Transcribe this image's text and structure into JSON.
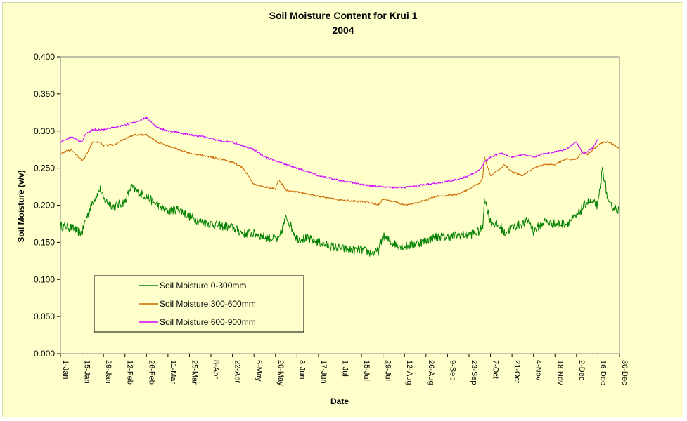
{
  "chart_data": {
    "type": "line",
    "title": "Soil Moisture Content for Krui 1",
    "subtitle": "2004",
    "xlabel": "Date",
    "ylabel": "Soil Moisture (v/v)",
    "ylim": [
      0,
      0.4
    ],
    "yticks": [
      "0.000",
      "0.050",
      "0.100",
      "0.150",
      "0.200",
      "0.250",
      "0.300",
      "0.350",
      "0.400"
    ],
    "xlim": [
      "1-Jan",
      "30-Dec"
    ],
    "xticks": [
      "1-Jan",
      "15-Jan",
      "29-Jan",
      "12-Feb",
      "26-Feb",
      "11-Mar",
      "25-Mar",
      "8-Apr",
      "22-Apr",
      "6-May",
      "20-May",
      "3-Jun",
      "17-Jun",
      "1-Jul",
      "15-Jul",
      "29-Jul",
      "12-Aug",
      "26-Aug",
      "9-Sep",
      "23-Sep",
      "7-Oct",
      "21-Oct",
      "4-Nov",
      "18-Nov",
      "2-Dec",
      "16-Dec",
      "30-Dec"
    ],
    "grid": false,
    "legend_position": "bottom-left",
    "series": [
      {
        "name": "Soil Moisture 0-300mm",
        "color": "#008000",
        "x": [
          "1-Jan",
          "8-Jan",
          "15-Jan",
          "17-Jan",
          "22-Jan",
          "27-Jan",
          "29-Jan",
          "5-Feb",
          "12-Feb",
          "16-Feb",
          "20-Feb",
          "26-Feb",
          "4-Mar",
          "11-Mar",
          "18-Mar",
          "25-Mar",
          "1-Apr",
          "8-Apr",
          "15-Apr",
          "22-Apr",
          "29-Apr",
          "6-May",
          "13-May",
          "20-May",
          "22-May",
          "27-May",
          "3-Jun",
          "10-Jun",
          "17-Jun",
          "24-Jun",
          "1-Jul",
          "8-Jul",
          "15-Jul",
          "22-Jul",
          "26-Jul",
          "29-Jul",
          "5-Aug",
          "12-Aug",
          "19-Aug",
          "26-Aug",
          "2-Sep",
          "9-Sep",
          "16-Sep",
          "23-Sep",
          "30-Sep",
          "2-Oct",
          "3-Oct",
          "7-Oct",
          "14-Oct",
          "16-Oct",
          "21-Oct",
          "28-Oct",
          "1-Nov",
          "4-Nov",
          "11-Nov",
          "18-Nov",
          "25-Nov",
          "2-Dec",
          "9-Dec",
          "16-Dec",
          "19-Dec",
          "23-Dec",
          "30-Dec"
        ],
        "y": [
          0.172,
          0.17,
          0.162,
          0.178,
          0.205,
          0.222,
          0.208,
          0.198,
          0.205,
          0.225,
          0.218,
          0.212,
          0.2,
          0.192,
          0.195,
          0.185,
          0.178,
          0.175,
          0.172,
          0.17,
          0.162,
          0.162,
          0.157,
          0.155,
          0.152,
          0.185,
          0.155,
          0.155,
          0.15,
          0.145,
          0.142,
          0.14,
          0.14,
          0.135,
          0.138,
          0.158,
          0.148,
          0.144,
          0.148,
          0.152,
          0.158,
          0.157,
          0.16,
          0.16,
          0.165,
          0.17,
          0.21,
          0.178,
          0.17,
          0.162,
          0.17,
          0.175,
          0.18,
          0.165,
          0.178,
          0.175,
          0.175,
          0.185,
          0.205,
          0.2,
          0.25,
          0.2,
          0.193
        ]
      },
      {
        "name": "Soil Moisture 300-600mm",
        "color": "#cc6600",
        "x": [
          "1-Jan",
          "8-Jan",
          "15-Jan",
          "17-Jan",
          "22-Jan",
          "27-Jan",
          "29-Jan",
          "5-Feb",
          "12-Feb",
          "19-Feb",
          "26-Feb",
          "4-Mar",
          "11-Mar",
          "18-Mar",
          "25-Mar",
          "1-Apr",
          "8-Apr",
          "15-Apr",
          "22-Apr",
          "29-Apr",
          "6-May",
          "13-May",
          "20-May",
          "22-May",
          "27-May",
          "3-Jun",
          "10-Jun",
          "17-Jun",
          "24-Jun",
          "1-Jul",
          "8-Jul",
          "15-Jul",
          "22-Jul",
          "26-Jul",
          "29-Jul",
          "5-Aug",
          "12-Aug",
          "19-Aug",
          "26-Aug",
          "2-Sep",
          "9-Sep",
          "16-Sep",
          "23-Sep",
          "30-Sep",
          "2-Oct",
          "3-Oct",
          "7-Oct",
          "14-Oct",
          "16-Oct",
          "21-Oct",
          "28-Oct",
          "4-Nov",
          "11-Nov",
          "18-Nov",
          "25-Nov",
          "2-Dec",
          "6-Dec",
          "9-Dec",
          "13-Dec",
          "19-Dec",
          "23-Dec",
          "30-Dec"
        ],
        "y": [
          0.27,
          0.275,
          0.26,
          0.265,
          0.285,
          0.285,
          0.28,
          0.282,
          0.29,
          0.295,
          0.295,
          0.285,
          0.28,
          0.275,
          0.27,
          0.268,
          0.265,
          0.262,
          0.258,
          0.25,
          0.228,
          0.225,
          0.222,
          0.235,
          0.22,
          0.218,
          0.215,
          0.212,
          0.21,
          0.207,
          0.206,
          0.205,
          0.203,
          0.2,
          0.208,
          0.205,
          0.2,
          0.203,
          0.207,
          0.212,
          0.213,
          0.215,
          0.222,
          0.23,
          0.238,
          0.265,
          0.24,
          0.25,
          0.255,
          0.245,
          0.24,
          0.25,
          0.255,
          0.255,
          0.262,
          0.262,
          0.272,
          0.268,
          0.275,
          0.285,
          0.285,
          0.277
        ]
      },
      {
        "name": "Soil Moisture 600-900mm",
        "color": "#cc00ff",
        "x": [
          "1-Jan",
          "8-Jan",
          "15-Jan",
          "17-Jan",
          "22-Jan",
          "29-Jan",
          "5-Feb",
          "12-Feb",
          "19-Feb",
          "26-Feb",
          "4-Mar",
          "11-Mar",
          "18-Mar",
          "25-Mar",
          "1-Apr",
          "8-Apr",
          "15-Apr",
          "22-Apr",
          "29-Apr",
          "6-May",
          "13-May",
          "20-May",
          "27-May",
          "3-Jun",
          "10-Jun",
          "17-Jun",
          "24-Jun",
          "1-Jul",
          "8-Jul",
          "15-Jul",
          "22-Jul",
          "29-Jul",
          "5-Aug",
          "12-Aug",
          "19-Aug",
          "26-Aug",
          "2-Sep",
          "9-Sep",
          "16-Sep",
          "23-Sep",
          "30-Sep",
          "3-Oct",
          "7-Oct",
          "14-Oct",
          "21-Oct",
          "28-Oct",
          "4-Nov",
          "11-Nov",
          "18-Nov",
          "25-Nov",
          "2-Dec",
          "6-Dec",
          "9-Dec",
          "13-Dec",
          "16-Dec"
        ],
        "y": [
          0.285,
          0.292,
          0.285,
          0.295,
          0.302,
          0.302,
          0.305,
          0.308,
          0.312,
          0.318,
          0.305,
          0.3,
          0.298,
          0.295,
          0.293,
          0.29,
          0.286,
          0.285,
          0.28,
          0.275,
          0.265,
          0.26,
          0.255,
          0.25,
          0.245,
          0.24,
          0.237,
          0.233,
          0.231,
          0.228,
          0.226,
          0.225,
          0.224,
          0.224,
          0.226,
          0.228,
          0.23,
          0.232,
          0.235,
          0.24,
          0.248,
          0.258,
          0.265,
          0.27,
          0.265,
          0.268,
          0.265,
          0.27,
          0.272,
          0.275,
          0.285,
          0.27,
          0.272,
          0.278,
          0.29
        ]
      }
    ]
  }
}
